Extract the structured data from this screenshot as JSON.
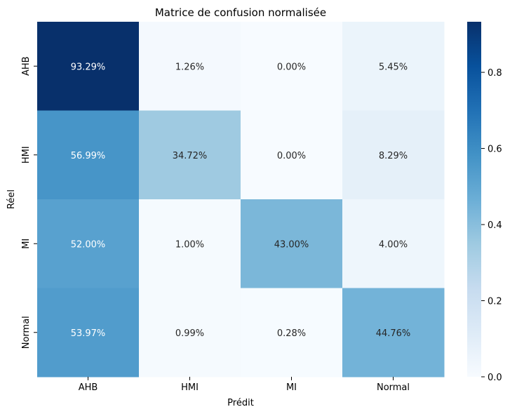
{
  "chart_data": {
    "type": "heatmap",
    "title": "Matrice de confusion normalisée",
    "xlabel": "Prédit",
    "ylabel": "Réel",
    "x_categories": [
      "AHB",
      "HMI",
      "MI",
      "Normal"
    ],
    "y_categories": [
      "AHB",
      "HMI",
      "MI",
      "Normal"
    ],
    "values": [
      [
        0.9329,
        0.0126,
        0.0,
        0.0545
      ],
      [
        0.5699,
        0.3472,
        0.0,
        0.0829
      ],
      [
        0.52,
        0.01,
        0.43,
        0.04
      ],
      [
        0.5397,
        0.0099,
        0.0028,
        0.4476
      ]
    ],
    "cell_labels": [
      [
        "93.29%",
        "1.26%",
        "0.00%",
        "5.45%"
      ],
      [
        "56.99%",
        "34.72%",
        "0.00%",
        "8.29%"
      ],
      [
        "52.00%",
        "1.00%",
        "43.00%",
        "4.00%"
      ],
      [
        "53.97%",
        "0.99%",
        "0.28%",
        "44.76%"
      ]
    ],
    "colormap": "Blues",
    "color_range": [
      0,
      0.9329
    ],
    "colorbar_ticks": [
      "0.0",
      "0.2",
      "0.4",
      "0.6",
      "0.8"
    ],
    "colorbar_tick_values": [
      0.0,
      0.2,
      0.4,
      0.6,
      0.8
    ]
  }
}
